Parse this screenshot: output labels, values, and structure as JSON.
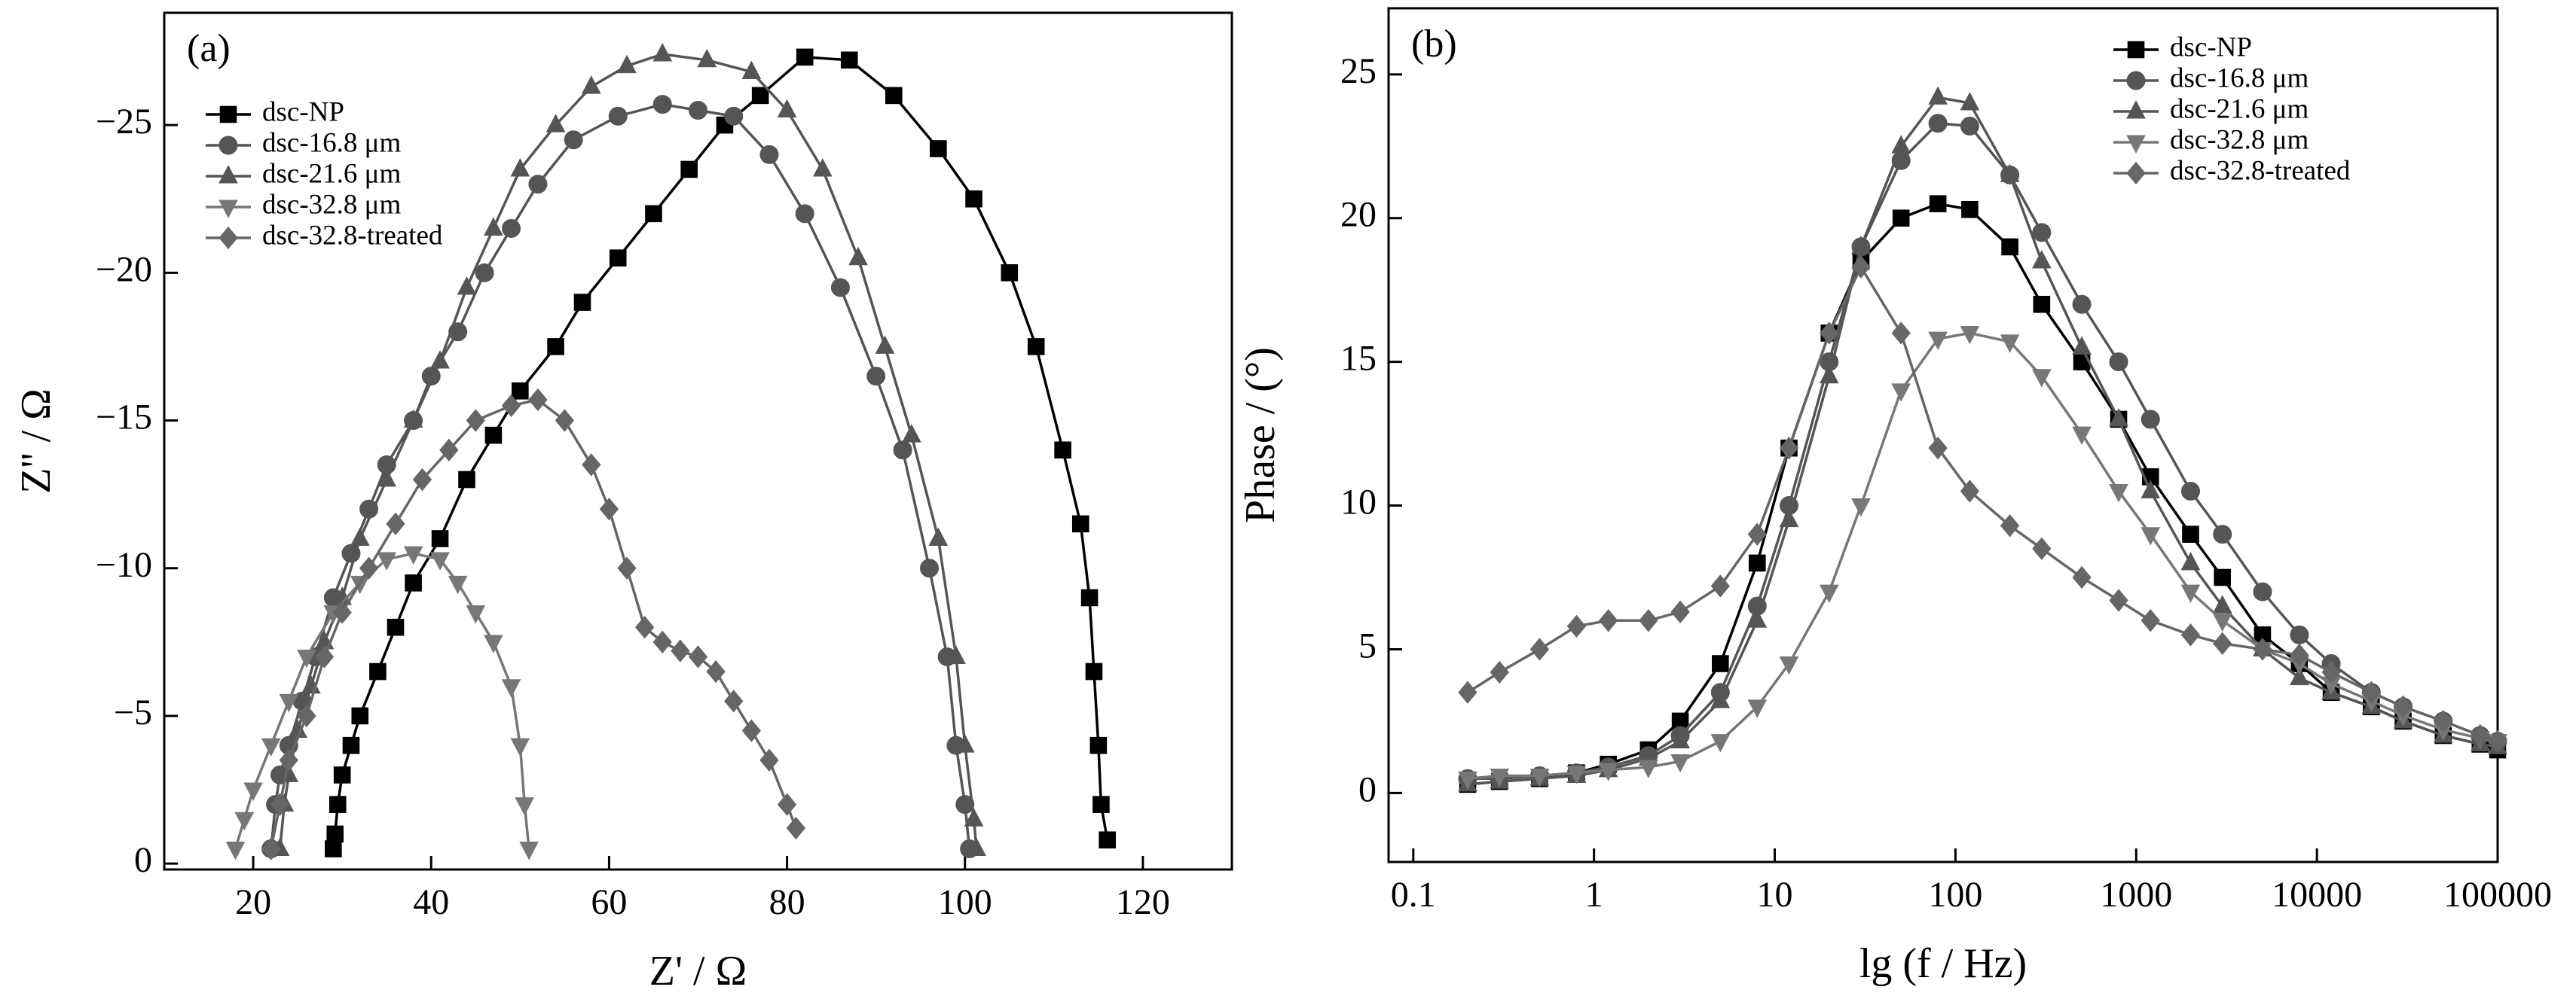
{
  "chart_data": [
    {
      "type": "scatter",
      "label": "(a)",
      "x_label": "Z' / Ω",
      "y_label": "Z'' / Ω",
      "xlim": [
        10,
        130
      ],
      "xticks": [
        20,
        40,
        60,
        80,
        100,
        120
      ],
      "ylim": [
        0.2,
        -28.8
      ],
      "yticks": [
        {
          "value": 0,
          "label": "0"
        },
        {
          "value": -5,
          "label": "−5"
        },
        {
          "value": -10,
          "label": "−10"
        },
        {
          "value": -15,
          "label": "−15"
        },
        {
          "value": -20,
          "label": "−20"
        },
        {
          "value": -25,
          "label": "−25"
        }
      ],
      "legend": "upper left",
      "series": [
        {
          "name": "dsc-NP",
          "color": "#000000",
          "marker": "square",
          "x": [
            29,
            29.2,
            29.5,
            30,
            31,
            32,
            34,
            36,
            38,
            41,
            44,
            47,
            50,
            54,
            57,
            61,
            65,
            69,
            73,
            77,
            82,
            87,
            92,
            97,
            101,
            105,
            108,
            111,
            113,
            114,
            114.5,
            115,
            115.3,
            116
          ],
          "values": [
            -0.5,
            -1,
            -2,
            -3,
            -4,
            -5,
            -6.5,
            -8,
            -9.5,
            -11,
            -13,
            -14.5,
            -16,
            -17.5,
            -19,
            -20.5,
            -22,
            -23.5,
            -25,
            -26,
            -27.3,
            -27.2,
            -26,
            -24.2,
            -22.5,
            -20,
            -17.5,
            -14,
            -11.5,
            -9,
            -6.5,
            -4,
            -2,
            -0.8
          ]
        },
        {
          "name": "dsc-16.8 μm",
          "color": "#555555",
          "marker": "circle",
          "x": [
            22,
            22.5,
            23,
            24,
            25.5,
            27,
            29,
            31,
            33,
            35,
            38,
            40,
            43,
            46,
            49,
            52,
            56,
            61,
            66,
            70,
            74,
            78,
            82,
            86,
            90,
            93,
            96,
            98,
            99,
            100,
            100.5
          ],
          "values": [
            -0.5,
            -2,
            -3,
            -4,
            -5.5,
            -7,
            -9,
            -10.5,
            -12,
            -13.5,
            -15,
            -16.5,
            -18,
            -20,
            -21.5,
            -23,
            -24.5,
            -25.3,
            -25.7,
            -25.5,
            -25.3,
            -24,
            -22,
            -19.5,
            -16.5,
            -14,
            -10,
            -7,
            -4,
            -2,
            -0.5
          ]
        },
        {
          "name": "dsc-21.6 μm",
          "color": "#555555",
          "marker": "triangle",
          "x": [
            23,
            23.5,
            24,
            25,
            26.5,
            28,
            30,
            32,
            35,
            38,
            41,
            44,
            47,
            50,
            54,
            58,
            62,
            66,
            71,
            76,
            80,
            84,
            88,
            91,
            94,
            97,
            99,
            100,
            101,
            101.3
          ],
          "values": [
            -0.5,
            -2,
            -3,
            -4.5,
            -6,
            -7.5,
            -9,
            -11,
            -13,
            -15,
            -17,
            -19.5,
            -21.5,
            -23.5,
            -25,
            -26.3,
            -27,
            -27.4,
            -27.2,
            -26.8,
            -25.5,
            -23.5,
            -20.5,
            -17.5,
            -14.5,
            -11,
            -7,
            -4,
            -1.5,
            -0.5
          ]
        },
        {
          "name": "dsc-32.8 μm",
          "color": "#777777",
          "marker": "triangle-down",
          "x": [
            18,
            19,
            20,
            22,
            24,
            26,
            29,
            32,
            35,
            38,
            41,
            43,
            45,
            47,
            49,
            50,
            50.5,
            51
          ],
          "values": [
            -0.5,
            -1.5,
            -2.5,
            -4,
            -5.5,
            -7,
            -8.5,
            -9.5,
            -10.3,
            -10.5,
            -10.3,
            -9.5,
            -8.5,
            -7.5,
            -6,
            -4,
            -2,
            -0.5
          ]
        },
        {
          "name": "dsc-32.8-treated",
          "color": "#666666",
          "marker": "diamond",
          "x": [
            22,
            23,
            24,
            26,
            28,
            30,
            33,
            36,
            39,
            42,
            45,
            49,
            52,
            55,
            58,
            60,
            62,
            64,
            66,
            68,
            70,
            72,
            74,
            76,
            78,
            80,
            81
          ],
          "values": [
            -0.5,
            -2,
            -3.5,
            -5,
            -7,
            -8.5,
            -10,
            -11.5,
            -13,
            -14,
            -15,
            -15.5,
            -15.7,
            -15,
            -13.5,
            -12,
            -10,
            -8,
            -7.5,
            -7.2,
            -7,
            -6.5,
            -5.5,
            -4.5,
            -3.5,
            -2,
            -1.2
          ]
        }
      ]
    },
    {
      "type": "line",
      "label": "(b)",
      "x_label": "lg (f / Hz)",
      "y_label": "Phase / (°)",
      "xscale": "log",
      "xlim": [
        0.073,
        100000
      ],
      "xticks": [
        0.1,
        1,
        10,
        100,
        1000,
        10000,
        100000
      ],
      "ylim": [
        -2.4,
        27.3
      ],
      "yticks": [
        0,
        5,
        10,
        15,
        20,
        25
      ],
      "legend": "upper right",
      "x": [
        0.2,
        0.3,
        0.5,
        0.8,
        1.2,
        2,
        3,
        5,
        8,
        12,
        20,
        30,
        50,
        80,
        120,
        200,
        300,
        500,
        800,
        1200,
        2000,
        3000,
        5000,
        8000,
        12000,
        20000,
        30000,
        50000,
        80000,
        100000
      ],
      "series": [
        {
          "name": "dsc-NP",
          "color": "#000000",
          "marker": "square",
          "values": [
            0.3,
            0.4,
            0.5,
            0.7,
            1,
            1.5,
            2.5,
            4.5,
            8,
            12,
            16,
            18.5,
            20,
            20.5,
            20.3,
            19,
            17,
            15,
            13,
            11,
            9,
            7.5,
            5.5,
            4.5,
            3.5,
            3,
            2.5,
            2,
            1.7,
            1.5
          ]
        },
        {
          "name": "dsc-16.8 μm",
          "color": "#555555",
          "marker": "circle",
          "values": [
            0.5,
            0.5,
            0.6,
            0.7,
            0.9,
            1.3,
            2,
            3.5,
            6.5,
            10,
            15,
            19,
            22,
            23.3,
            23.2,
            21.5,
            19.5,
            17,
            15,
            13,
            10.5,
            9,
            7,
            5.5,
            4.5,
            3.5,
            3,
            2.5,
            2,
            1.8
          ]
        },
        {
          "name": "dsc-21.6 μm",
          "color": "#555555",
          "marker": "triangle",
          "values": [
            0.3,
            0.4,
            0.5,
            0.6,
            0.8,
            1.2,
            1.8,
            3.2,
            6,
            9.5,
            14.5,
            19,
            22.5,
            24.2,
            24,
            21.5,
            18.5,
            15.5,
            13,
            10.5,
            8,
            6.5,
            5,
            4,
            3.5,
            3,
            2.5,
            2,
            1.7,
            1.6
          ]
        },
        {
          "name": "dsc-32.8 μm",
          "color": "#777777",
          "marker": "triangle-down",
          "values": [
            0.5,
            0.6,
            0.6,
            0.7,
            0.8,
            0.9,
            1.1,
            1.8,
            3,
            4.5,
            7,
            10,
            14,
            15.8,
            16,
            15.7,
            14.5,
            12.5,
            10.5,
            9,
            7,
            6,
            5,
            4.5,
            3.8,
            3.2,
            2.7,
            2.2,
            1.9,
            1.8
          ]
        },
        {
          "name": "dsc-32.8-treated",
          "color": "#666666",
          "marker": "diamond",
          "values": [
            3.5,
            4.2,
            5,
            5.8,
            6,
            6,
            6.3,
            7.2,
            9,
            12,
            16,
            18.3,
            16,
            12,
            10.5,
            9.3,
            8.5,
            7.5,
            6.7,
            6,
            5.5,
            5.2,
            5,
            4.8,
            4.2,
            3.5,
            3,
            2.5,
            2,
            1.8
          ]
        }
      ]
    }
  ]
}
